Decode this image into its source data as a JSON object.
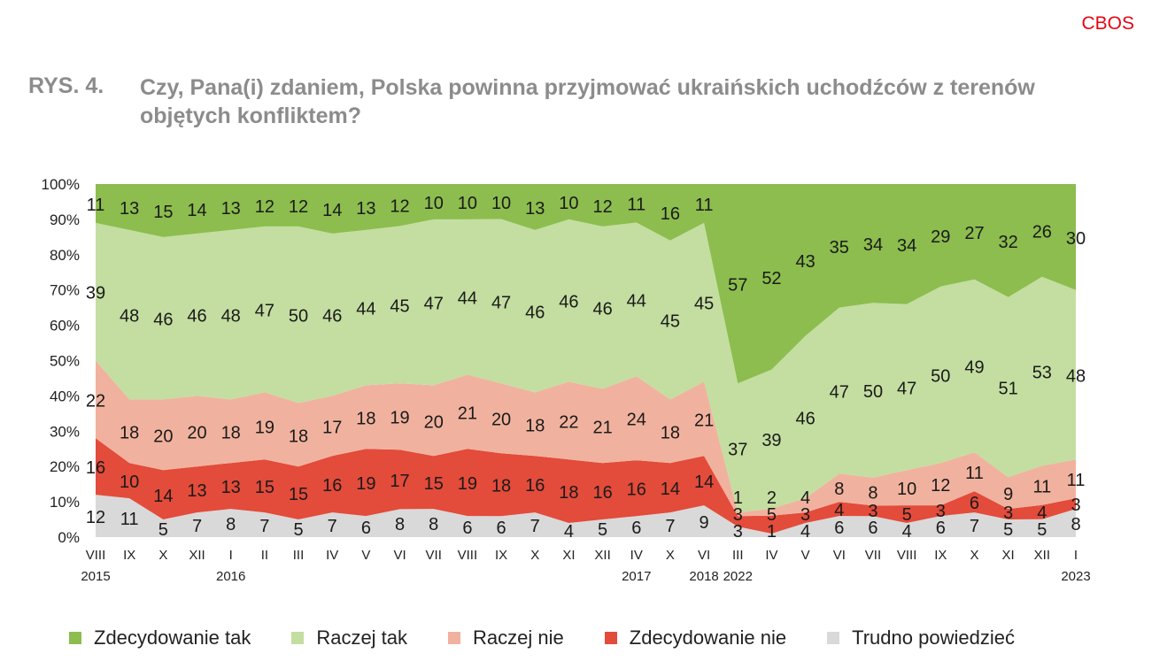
{
  "brand": "CBOS",
  "figure": {
    "number": "RYS. 4.",
    "title": "Czy, Pana(i) zdaniem, Polska powinna przyjmować ukraińskich uchodźców z terenów objętych konfliktem?"
  },
  "legend_items": [
    {
      "label": "Zdecydowanie tak",
      "color": "#8cbd4e"
    },
    {
      "label": "Raczej tak",
      "color": "#c3dea0"
    },
    {
      "label": "Raczej nie",
      "color": "#f0b29e"
    },
    {
      "label": "Zdecydowanie nie",
      "color": "#e34b3b"
    },
    {
      "label": "Trudno powiedzieć",
      "color": "#d9d9d9"
    }
  ],
  "chart_data": {
    "type": "area",
    "stacked": true,
    "percent_scale": true,
    "ylim": [
      0,
      100
    ],
    "yticks": [
      "0%",
      "10%",
      "20%",
      "30%",
      "40%",
      "50%",
      "60%",
      "70%",
      "80%",
      "90%",
      "100%"
    ],
    "categories": [
      "VIII",
      "IX",
      "X",
      "XII",
      "I",
      "II",
      "III",
      "IV",
      "V",
      "VI",
      "VII",
      "VIII",
      "IX",
      "X",
      "XI",
      "XII",
      "IV",
      "X",
      "VI",
      "III",
      "IV",
      "V",
      "VI",
      "VII",
      "VIII",
      "IX",
      "X",
      "XI",
      "XII",
      "I"
    ],
    "year_labels": [
      {
        "index": 0,
        "label": "2015"
      },
      {
        "index": 4,
        "label": "2016"
      },
      {
        "index": 16,
        "label": "2017"
      },
      {
        "index": 18,
        "label": "2018"
      },
      {
        "index": 19,
        "label": "2022"
      },
      {
        "index": 29,
        "label": "2023"
      }
    ],
    "series": [
      {
        "name": "Trudno powiedzieć",
        "color": "#d9d9d9",
        "values": [
          12,
          11,
          5,
          7,
          8,
          7,
          5,
          7,
          6,
          8,
          8,
          6,
          6,
          7,
          4,
          5,
          6,
          7,
          9,
          3,
          1,
          4,
          6,
          6,
          4,
          6,
          7,
          5,
          5,
          8
        ]
      },
      {
        "name": "Zdecydowanie nie",
        "color": "#e34b3b",
        "values": [
          16,
          10,
          14,
          13,
          13,
          15,
          15,
          16,
          19,
          17,
          15,
          19,
          18,
          16,
          18,
          16,
          16,
          14,
          14,
          3,
          5,
          3,
          4,
          3,
          5,
          3,
          6,
          3,
          4,
          3
        ]
      },
      {
        "name": "Raczej nie",
        "color": "#f0b29e",
        "values": [
          22,
          18,
          20,
          20,
          18,
          19,
          18,
          17,
          18,
          19,
          20,
          21,
          20,
          18,
          22,
          21,
          24,
          18,
          21,
          1,
          2,
          4,
          8,
          8,
          10,
          12,
          11,
          9,
          11,
          11
        ]
      },
      {
        "name": "Raczej tak",
        "color": "#c3dea0",
        "values": [
          39,
          48,
          46,
          46,
          48,
          47,
          50,
          46,
          44,
          45,
          47,
          44,
          47,
          46,
          46,
          46,
          44,
          45,
          45,
          37,
          39,
          46,
          47,
          50,
          47,
          50,
          49,
          51,
          53,
          48
        ]
      },
      {
        "name": "Zdecydowanie tak",
        "color": "#8cbd4e",
        "values": [
          11,
          13,
          15,
          14,
          13,
          12,
          12,
          14,
          13,
          12,
          10,
          10,
          10,
          13,
          10,
          12,
          11,
          16,
          11,
          57,
          52,
          43,
          35,
          34,
          34,
          29,
          27,
          32,
          26,
          30
        ]
      }
    ]
  }
}
